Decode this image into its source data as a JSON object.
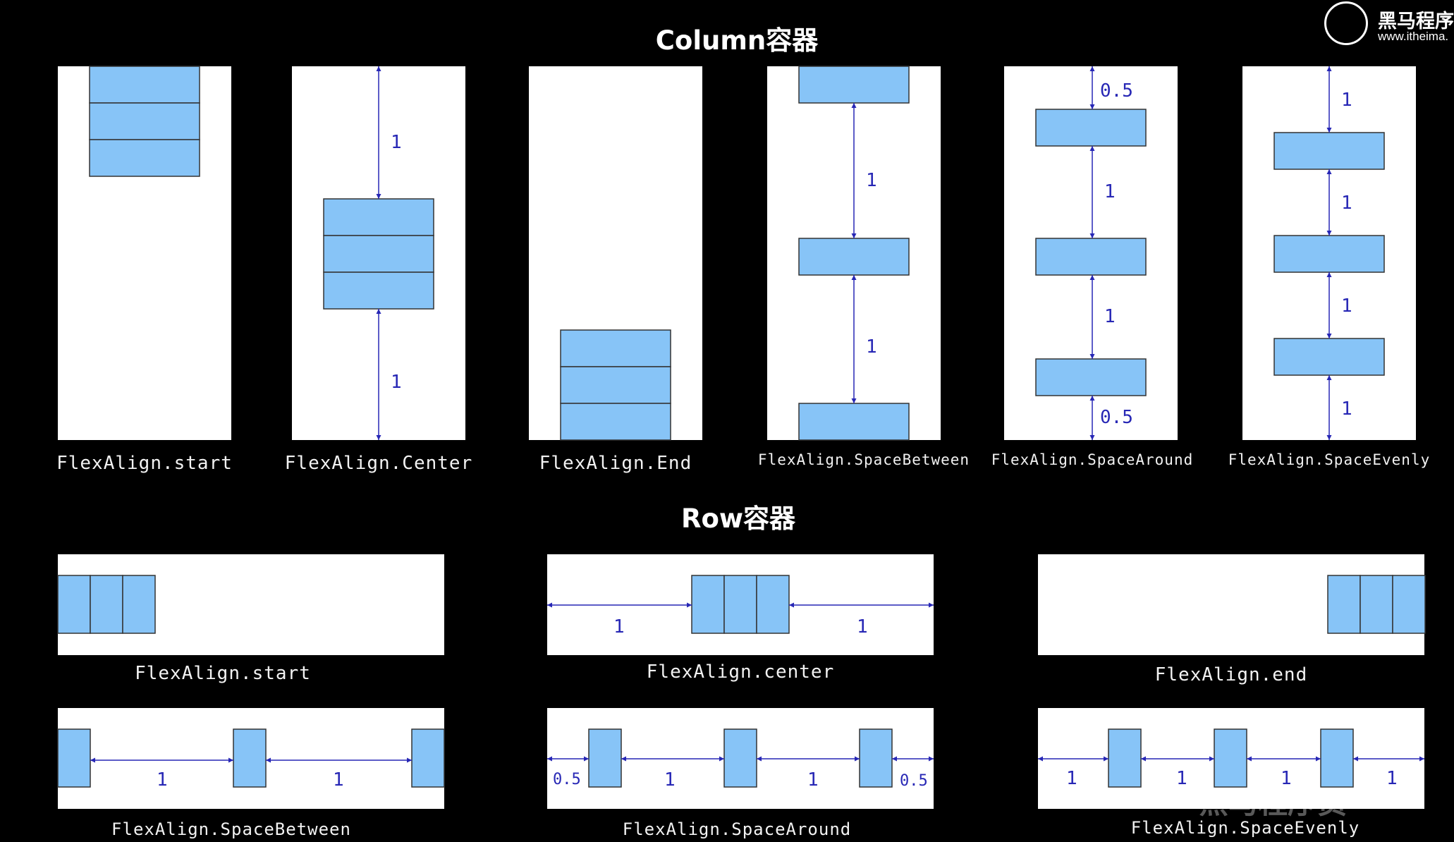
{
  "column_section": {
    "title": "Column容器",
    "panels": [
      {
        "label": "FlexAlign.start",
        "spacing": []
      },
      {
        "label": "FlexAlign.Center",
        "spacing": [
          "1",
          "1"
        ]
      },
      {
        "label": "FlexAlign.End",
        "spacing": []
      },
      {
        "label": "FlexAlign.SpaceBetween",
        "spacing": [
          "1",
          "1"
        ]
      },
      {
        "label": "FlexAlign.SpaceAround",
        "spacing": [
          "0.5",
          "1",
          "1",
          "0.5"
        ]
      },
      {
        "label": "FlexAlign.SpaceEvenly",
        "spacing": [
          "1",
          "1",
          "1",
          "1"
        ]
      }
    ]
  },
  "row_section": {
    "title": "Row容器",
    "panels": [
      {
        "label": "FlexAlign.start",
        "spacing": []
      },
      {
        "label": "FlexAlign.center",
        "spacing": [
          "1",
          "1"
        ]
      },
      {
        "label": "FlexAlign.end",
        "spacing": []
      },
      {
        "label": "FlexAlign.SpaceBetween",
        "spacing": [
          "1",
          "1"
        ]
      },
      {
        "label": "FlexAlign.SpaceAround",
        "spacing": [
          "0.5",
          "1",
          "1",
          "0.5"
        ]
      },
      {
        "label": "FlexAlign.SpaceEvenly",
        "spacing": [
          "1",
          "1",
          "1",
          "1"
        ]
      }
    ]
  },
  "logo": {
    "name": "黑马程序",
    "url": "www.itheima."
  },
  "watermark": "黑马程序员",
  "colors": {
    "box_fill": "#87c4f7",
    "arrow": "#2727b5",
    "panel": "#ffffff",
    "background": "#000000"
  }
}
